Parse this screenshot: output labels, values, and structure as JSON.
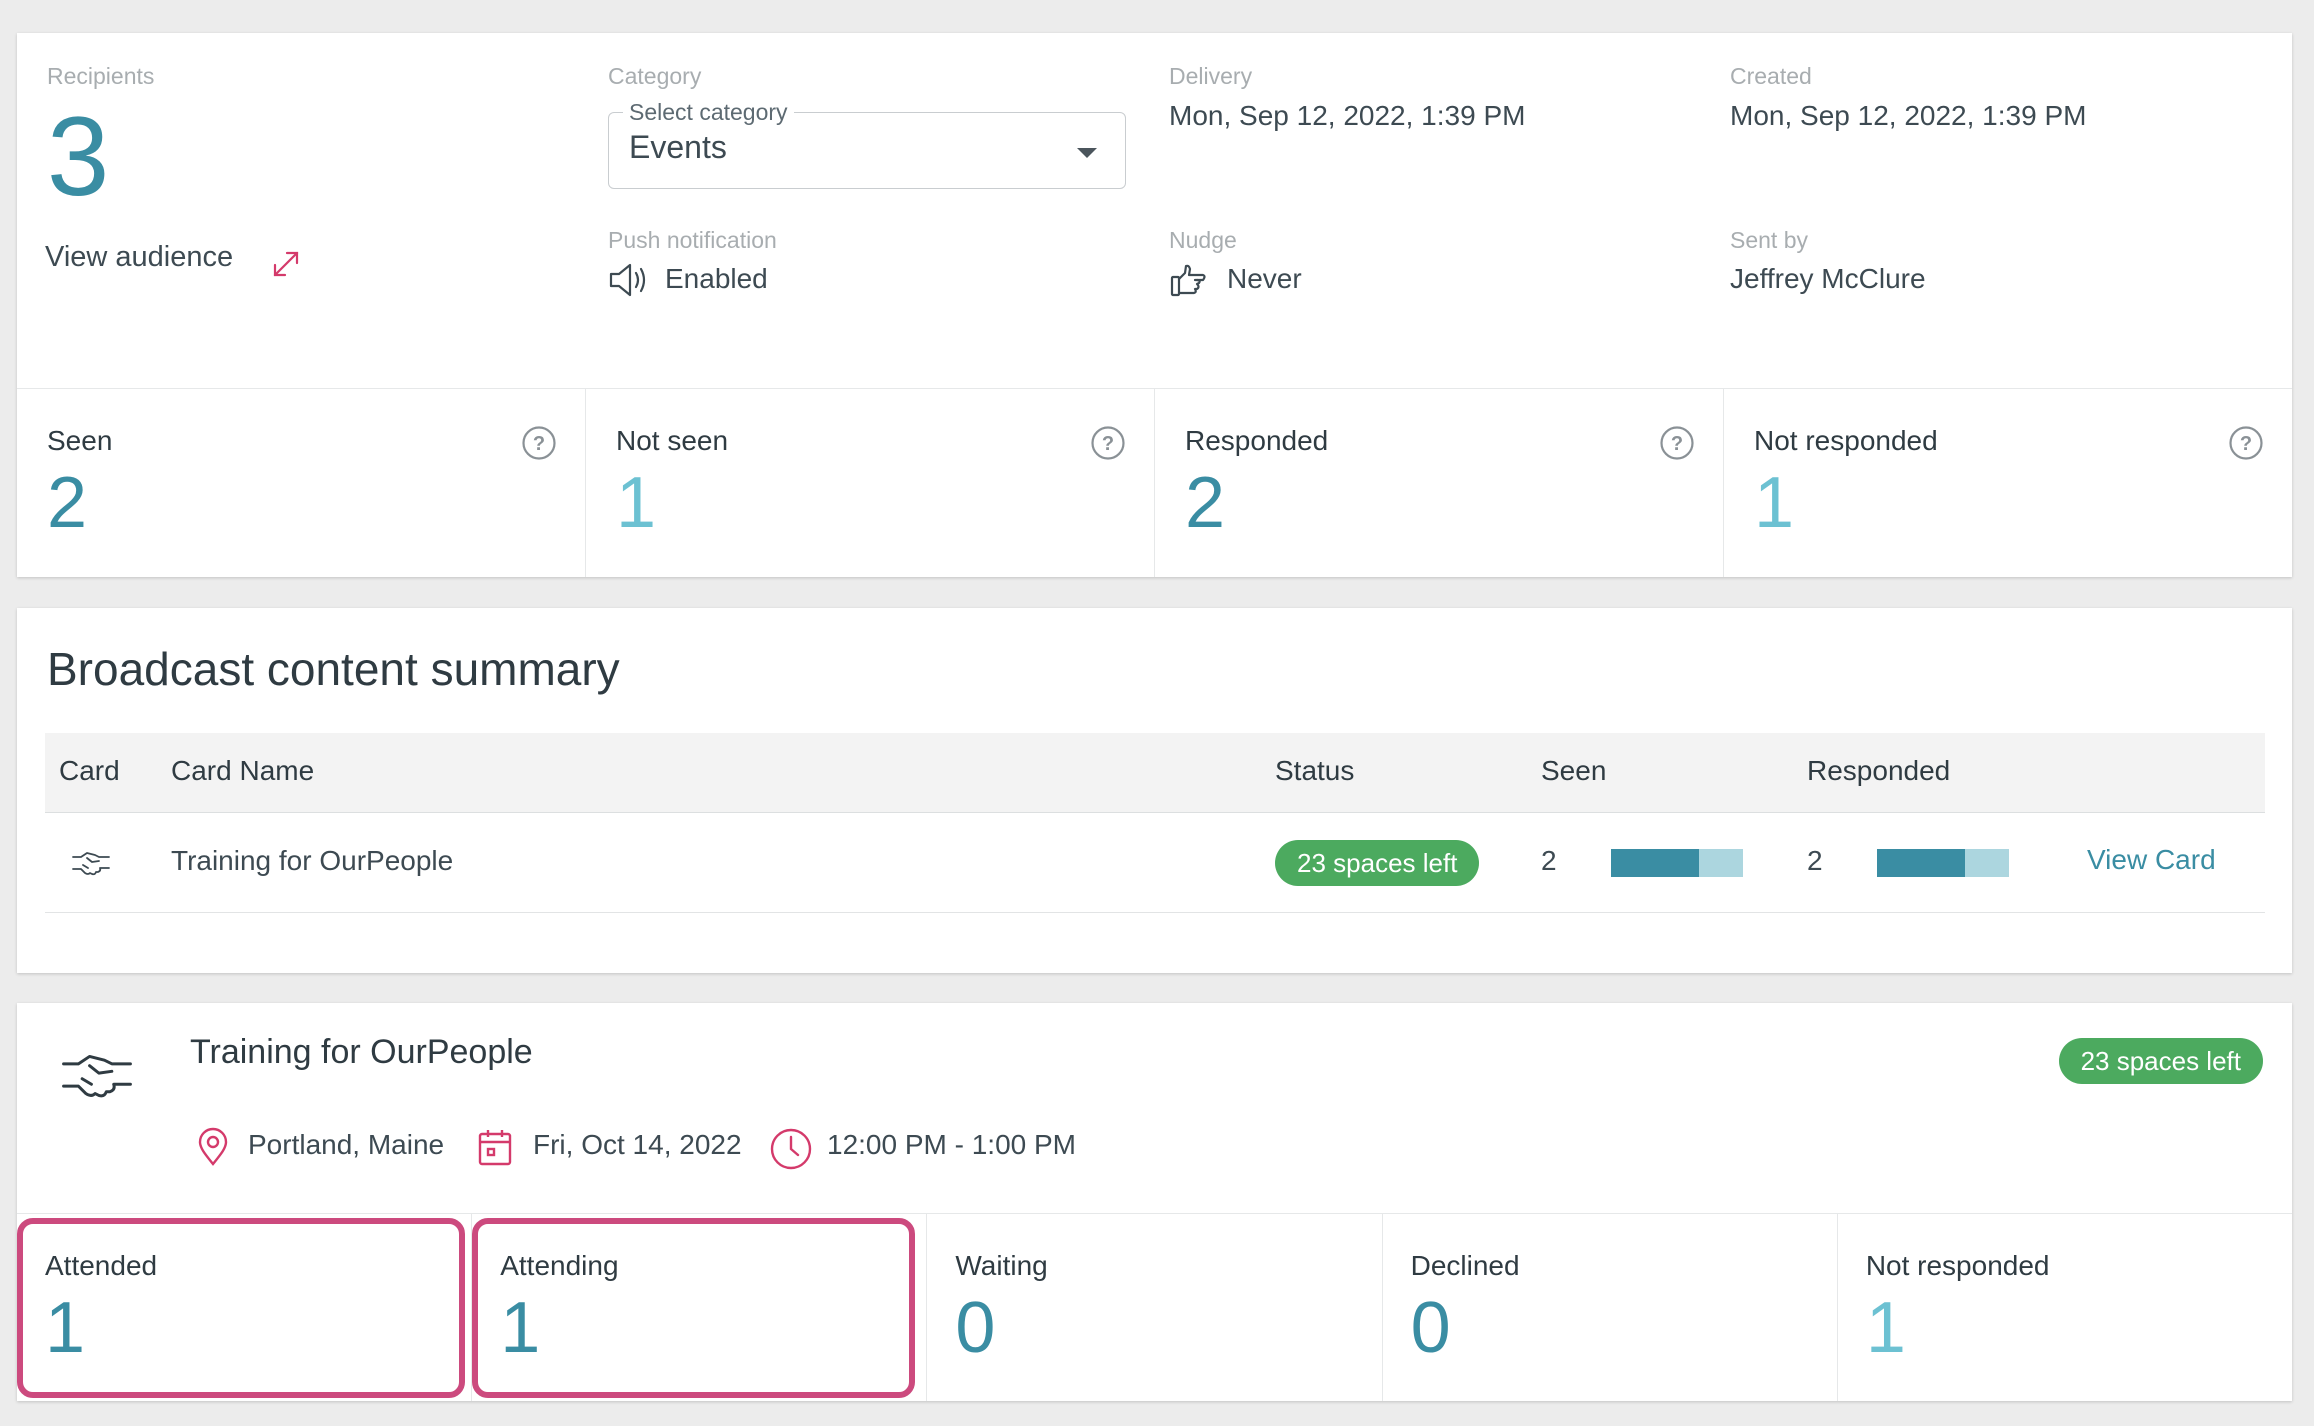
{
  "overview": {
    "recipients_label": "Recipients",
    "recipients_count": "3",
    "view_audience": "View audience",
    "category_label": "Category",
    "category_select_legend": "Select category",
    "category_value": "Events",
    "delivery_label": "Delivery",
    "delivery_value": "Mon, Sep 12, 2022, 1:39 PM",
    "created_label": "Created",
    "created_value": "Mon, Sep 12, 2022, 1:39 PM",
    "push_label": "Push notification",
    "push_value": "Enabled",
    "nudge_label": "Nudge",
    "nudge_value": "Never",
    "sentby_label": "Sent by",
    "sentby_value": "Jeffrey McClure"
  },
  "stats": [
    {
      "label": "Seen",
      "value": "2"
    },
    {
      "label": "Not seen",
      "value": "1"
    },
    {
      "label": "Responded",
      "value": "2"
    },
    {
      "label": "Not responded",
      "value": "1"
    }
  ],
  "summary": {
    "title": "Broadcast content summary",
    "columns": {
      "card": "Card",
      "name": "Card Name",
      "status": "Status",
      "seen": "Seen",
      "responded": "Responded"
    },
    "rows": [
      {
        "icon": "handshake-icon",
        "name": "Training for OurPeople",
        "status": "23 spaces left",
        "seen": "2",
        "seen_fraction": 0.667,
        "responded": "2",
        "responded_fraction": 0.667,
        "action": "View Card"
      }
    ]
  },
  "event": {
    "title": "Training for OurPeople",
    "badge": "23 spaces left",
    "location": "Portland, Maine",
    "date": "Fri, Oct 14, 2022",
    "time": "12:00 PM - 1:00 PM",
    "stats": [
      {
        "label": "Attended",
        "value": "1"
      },
      {
        "label": "Attending",
        "value": "1"
      },
      {
        "label": "Waiting",
        "value": "0"
      },
      {
        "label": "Declined",
        "value": "0"
      },
      {
        "label": "Not responded",
        "value": "1"
      }
    ]
  },
  "colors": {
    "accent": "#3a8da3",
    "accent_light": "#6cc1d2",
    "status_green": "#4caa5f",
    "highlight": "#cc4a7e",
    "icon_pink": "#d43a6b"
  }
}
